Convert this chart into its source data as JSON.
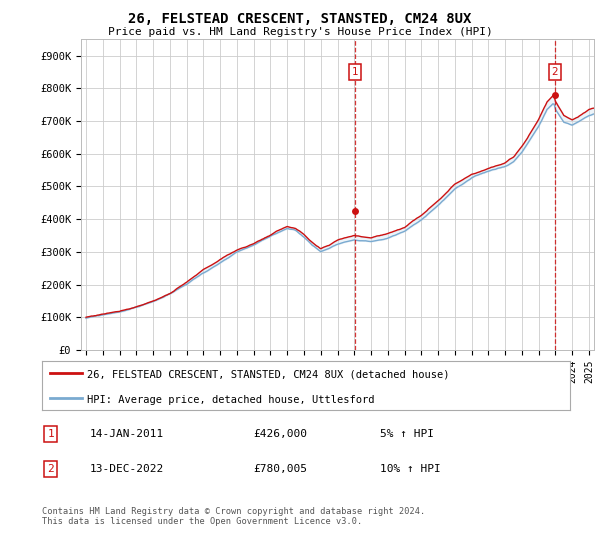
{
  "title": "26, FELSTEAD CRESCENT, STANSTED, CM24 8UX",
  "subtitle": "Price paid vs. HM Land Registry's House Price Index (HPI)",
  "ylabel_ticks": [
    "£0",
    "£100K",
    "£200K",
    "£300K",
    "£400K",
    "£500K",
    "£600K",
    "£700K",
    "£800K",
    "£900K"
  ],
  "ytick_values": [
    0,
    100000,
    200000,
    300000,
    400000,
    500000,
    600000,
    700000,
    800000,
    900000
  ],
  "ylim": [
    0,
    950000
  ],
  "xlim_start": 1994.7,
  "xlim_end": 2025.3,
  "hpi_color": "#7aaad0",
  "price_color": "#cc1111",
  "vline_color": "#cc1111",
  "fill_color": "#cce0f0",
  "marker1_x": 2011.04,
  "marker1_y": 426000,
  "marker2_x": 2022.96,
  "marker2_y": 780005,
  "legend_label1": "26, FELSTEAD CRESCENT, STANSTED, CM24 8UX (detached house)",
  "legend_label2": "HPI: Average price, detached house, Uttlesford",
  "annotation1_num": "1",
  "annotation1_date": "14-JAN-2011",
  "annotation1_price": "£426,000",
  "annotation1_hpi": "5% ↑ HPI",
  "annotation2_num": "2",
  "annotation2_date": "13-DEC-2022",
  "annotation2_price": "£780,005",
  "annotation2_hpi": "10% ↑ HPI",
  "footer": "Contains HM Land Registry data © Crown copyright and database right 2024.\nThis data is licensed under the Open Government Licence v3.0.",
  "background_color": "#ffffff",
  "grid_color": "#cccccc"
}
